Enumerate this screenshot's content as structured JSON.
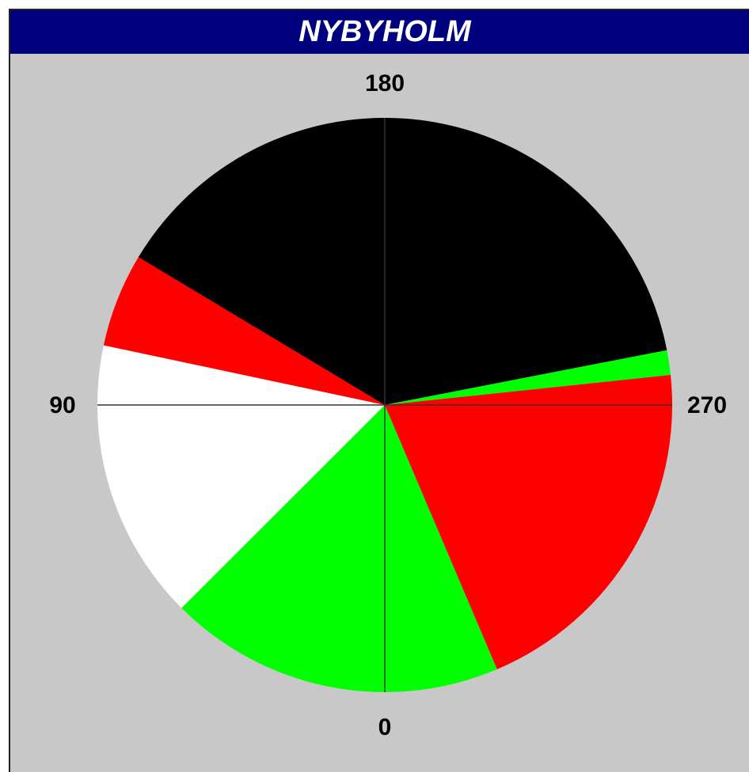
{
  "chart_data": {
    "type": "direction-sectors",
    "title": "NYBYHOLM",
    "ticks": [
      0,
      90,
      180,
      270
    ],
    "sectors": [
      {
        "start": 337,
        "end": 45,
        "color": "#00ff00"
      },
      {
        "start": 45,
        "end": 102,
        "color": "#ffffff"
      },
      {
        "start": 102,
        "end": 121,
        "color": "#ff0000"
      },
      {
        "start": 121,
        "end": 259,
        "color": "#000000"
      },
      {
        "start": 259,
        "end": 264,
        "color": "#00ff00"
      },
      {
        "start": 264,
        "end": 337,
        "color": "#ff0000"
      }
    ]
  }
}
